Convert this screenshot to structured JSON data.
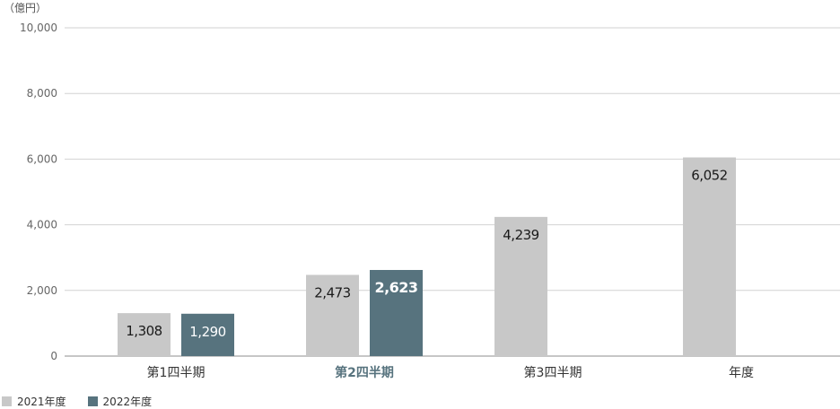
{
  "chart_data": {
    "type": "bar",
    "unit_label": "（億円）",
    "categories": [
      "第1四半期",
      "第2四半期",
      "第3四半期",
      "年度"
    ],
    "highlight_category": "第2四半期",
    "series": [
      {
        "name": "2021年度",
        "color": "#c8c8c8",
        "values": [
          1308,
          2473,
          4239,
          6052
        ],
        "labels": [
          "1,308",
          "2,473",
          "4,239",
          "6,052"
        ]
      },
      {
        "name": "2022年度",
        "color": "#57737e",
        "values": [
          1290,
          2623,
          null,
          null
        ],
        "labels": [
          "1,290",
          "2,623",
          "",
          ""
        ]
      }
    ],
    "ylim": [
      0,
      10000
    ],
    "yticks": [
      0,
      2000,
      4000,
      6000,
      8000,
      10000
    ],
    "ytick_labels": [
      "0",
      "2,000",
      "4,000",
      "6,000",
      "8,000",
      "10,000"
    ],
    "grid": true,
    "legend_position": "bottom-left",
    "highlight_color": "#57737e"
  }
}
